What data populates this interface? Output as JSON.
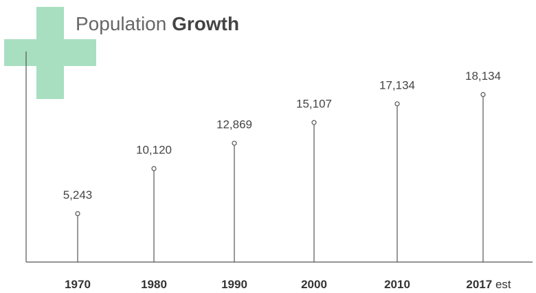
{
  "chart_data": {
    "type": "lollipop",
    "title": {
      "regular": "Population",
      "bold": "Growth"
    },
    "categories": [
      "1970",
      "1980",
      "1990",
      "2000",
      "2010",
      "2017"
    ],
    "annotation": "est",
    "values": [
      5243,
      10120,
      12869,
      15107,
      17134,
      18134
    ],
    "value_labels": [
      "5,243",
      "10,120",
      "12,869",
      "15,107",
      "17,134",
      "18,134"
    ],
    "ylim": [
      0,
      21000
    ],
    "accent_color": "#a8dfc0",
    "color": "#555555"
  }
}
